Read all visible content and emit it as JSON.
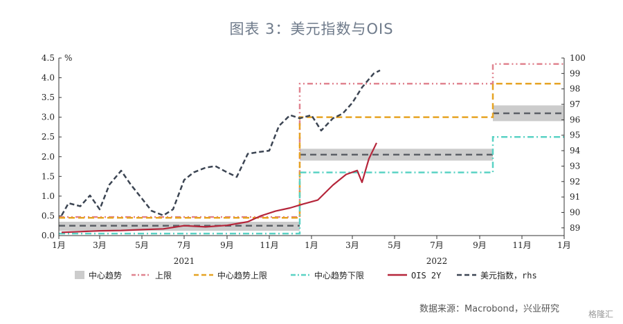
{
  "title": "图表 3：美元指数与OIS",
  "source": "数据来源：Macrobond，兴业研究",
  "watermark": "格隆汇",
  "chart_data": {
    "type": "line",
    "unit_left": "%",
    "ylim_left": [
      0.0,
      4.5
    ],
    "ylim_right": [
      88.5,
      100
    ],
    "yticks_left": [
      "0.0",
      "0.5",
      "1.0",
      "1.5",
      "2.0",
      "2.5",
      "3.0",
      "3.5",
      "4.0",
      "4.5"
    ],
    "yticks_right": [
      "89",
      "90",
      "91",
      "92",
      "93",
      "94",
      "95",
      "96",
      "97",
      "98",
      "99",
      "100"
    ],
    "xticks": [
      "1月",
      "3月",
      "5月",
      "7月",
      "9月",
      "11月",
      "1月",
      "3月",
      "5月",
      "7月",
      "9月",
      "11月",
      "1月"
    ],
    "xtick_dates": [
      "2021-01",
      "2021-03",
      "2021-05",
      "2021-07",
      "2021-09",
      "2021-11",
      "2022-01",
      "2022-03",
      "2022-05",
      "2022-07",
      "2022-09",
      "2022-11",
      "2023-01"
    ],
    "years": [
      "2021",
      "2022"
    ],
    "legend": [
      "中心趋势",
      "上限",
      "中心趋势上限",
      "中心趋势下限",
      "OIS 2Y",
      "美元指数，rhs"
    ],
    "colors": {
      "band": "#cccccc",
      "upper": "#e0838f",
      "trend_upper": "#e6a322",
      "trend_lower": "#5ad2c4",
      "ois": "#b5253a",
      "dxy": "#3c4553"
    },
    "projection_periods": [
      {
        "from": "2021-01",
        "to": "2021-12-15",
        "upper": 0.47,
        "trend_upper": 0.45,
        "band": [
          0.12,
          0.35
        ],
        "trend_mid": 0.25,
        "trend_lower": 0.05
      },
      {
        "from": "2021-12-15",
        "to": "2022-09-20",
        "upper": 3.85,
        "trend_upper": 3.0,
        "band": [
          1.9,
          2.2
        ],
        "trend_mid": 2.05,
        "trend_lower": 1.6
      },
      {
        "from": "2022-09-20",
        "to": "2023-01",
        "upper": 4.35,
        "trend_upper": 3.85,
        "band": [
          2.9,
          3.3
        ],
        "trend_mid": 3.1,
        "trend_lower": 2.5
      }
    ],
    "series": [
      {
        "name": "OIS 2Y",
        "axis": "left",
        "x": [
          "2021-01-05",
          "2021-02-01",
          "2021-03-01",
          "2021-04-01",
          "2021-05-01",
          "2021-06-01",
          "2021-07-01",
          "2021-08-01",
          "2021-09-01",
          "2021-10-01",
          "2021-10-20",
          "2021-11-10",
          "2021-12-01",
          "2021-12-20",
          "2022-01-10",
          "2022-02-01",
          "2022-02-20",
          "2022-03-08",
          "2022-03-15",
          "2022-03-25",
          "2022-04-05"
        ],
        "y": [
          0.08,
          0.1,
          0.12,
          0.13,
          0.15,
          0.17,
          0.25,
          0.22,
          0.26,
          0.35,
          0.5,
          0.62,
          0.7,
          0.8,
          0.9,
          1.28,
          1.55,
          1.65,
          1.35,
          1.95,
          2.35
        ]
      },
      {
        "name": "美元指数，rhs",
        "axis": "right",
        "x": [
          "2021-01-05",
          "2021-01-15",
          "2021-02-01",
          "2021-02-15",
          "2021-03-01",
          "2021-03-15",
          "2021-04-01",
          "2021-04-15",
          "2021-05-01",
          "2021-05-15",
          "2021-06-01",
          "2021-06-15",
          "2021-07-01",
          "2021-07-15",
          "2021-08-01",
          "2021-08-15",
          "2021-09-01",
          "2021-09-15",
          "2021-10-01",
          "2021-10-15",
          "2021-11-01",
          "2021-11-15",
          "2021-12-01",
          "2021-12-15",
          "2022-01-01",
          "2022-01-15",
          "2022-02-01",
          "2022-02-15",
          "2022-03-01",
          "2022-03-15",
          "2022-04-01",
          "2022-04-10"
        ],
        "y": [
          89.8,
          90.6,
          90.4,
          91.1,
          90.2,
          91.8,
          92.7,
          91.8,
          90.9,
          90.1,
          89.8,
          90.2,
          92.1,
          92.6,
          92.9,
          93.0,
          92.6,
          92.3,
          93.8,
          93.9,
          94.0,
          95.6,
          96.3,
          96.1,
          96.3,
          95.3,
          96.1,
          96.4,
          97.1,
          98.1,
          99.0,
          99.2
        ]
      }
    ]
  }
}
